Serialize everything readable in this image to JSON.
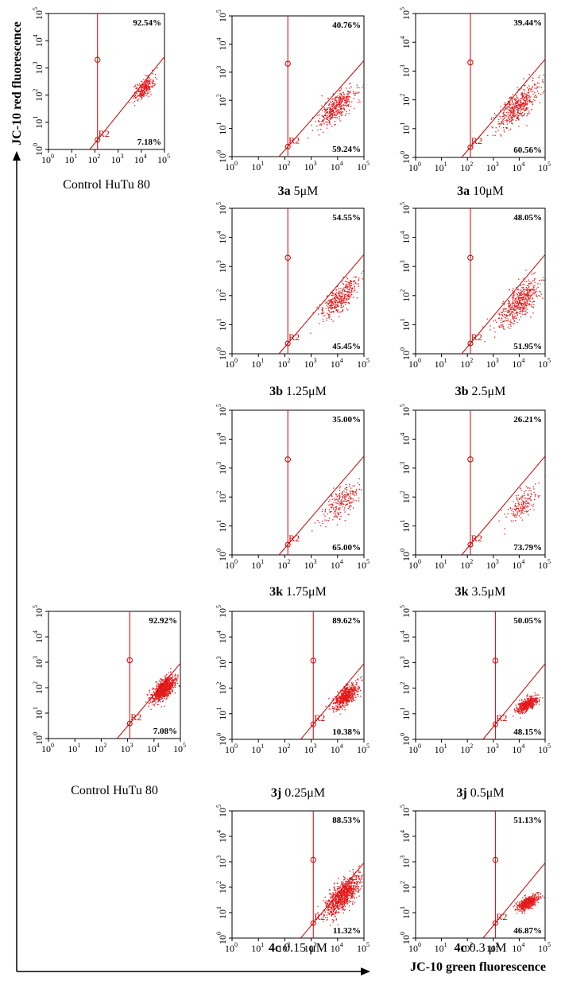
{
  "figure": {
    "y_axis_title": "JC-10 red fluorescence",
    "x_axis_title": "JC-10 green fluorescence",
    "colors": {
      "points": "#e31a1c",
      "gate": "#d00000",
      "axis": "#000000",
      "text": "#000000"
    }
  },
  "chart_data": [
    {
      "type": "scatter",
      "panel": "control-1",
      "caption_bold": "",
      "caption_rest": "Control HuTu 80",
      "x_scale": "log",
      "y_scale": "log",
      "xlim": [
        1,
        100000
      ],
      "ylim": [
        1,
        100000
      ],
      "x_ticks": [
        "10",
        "10",
        "10",
        "10",
        "10",
        "10"
      ],
      "x_tick_exponents": [
        "0",
        "1",
        "2",
        "3",
        "4",
        "5"
      ],
      "y_ticks": [
        "10",
        "10",
        "10",
        "10",
        "10",
        "10"
      ],
      "y_tick_exponents": [
        "0",
        "1",
        "2",
        "3",
        "4",
        "5"
      ],
      "upper_percent": "92.54%",
      "lower_percent": "7.18%",
      "gate_label": "R2",
      "vertical_gate_x": 130,
      "diagonal_gate": [
        [
          60,
          1
        ],
        [
          60000,
          1500
        ]
      ],
      "gate_marker_y": 2000,
      "cluster": {
        "center_x": 12000,
        "center_y": 180,
        "spread_log_x": 0.22,
        "spread_log_y": 0.28,
        "count": 260,
        "tilt": 0.6
      }
    },
    {
      "type": "scatter",
      "panel": "3a-5uM",
      "caption_bold": "3a",
      "caption_rest": " 5μM",
      "x_scale": "log",
      "y_scale": "log",
      "xlim": [
        1,
        100000
      ],
      "ylim": [
        1,
        100000
      ],
      "x_ticks": [
        "10",
        "10",
        "10",
        "10",
        "10",
        "10"
      ],
      "x_tick_exponents": [
        "0",
        "1",
        "2",
        "3",
        "4",
        "5"
      ],
      "y_ticks": [
        "10",
        "10",
        "10",
        "10",
        "10",
        "10"
      ],
      "y_tick_exponents": [
        "0",
        "1",
        "2",
        "3",
        "4",
        "5"
      ],
      "upper_percent": "40.76%",
      "lower_percent": "59.24%",
      "gate_label": "R2",
      "vertical_gate_x": 130,
      "diagonal_gate": [
        [
          60,
          1
        ],
        [
          60000,
          1500
        ]
      ],
      "gate_marker_y": 2000,
      "cluster": {
        "center_x": 9000,
        "center_y": 60,
        "spread_log_x": 0.35,
        "spread_log_y": 0.4,
        "count": 420,
        "tilt": 0.7
      }
    },
    {
      "type": "scatter",
      "panel": "3a-10uM",
      "caption_bold": "3a",
      "caption_rest": " 10μM",
      "x_scale": "log",
      "y_scale": "log",
      "xlim": [
        1,
        100000
      ],
      "ylim": [
        1,
        100000
      ],
      "x_ticks": [
        "10",
        "10",
        "10",
        "10",
        "10",
        "10"
      ],
      "x_tick_exponents": [
        "0",
        "1",
        "2",
        "3",
        "4",
        "5"
      ],
      "y_ticks": [
        "10",
        "10",
        "10",
        "10",
        "10",
        "10"
      ],
      "y_tick_exponents": [
        "0",
        "1",
        "2",
        "3",
        "4",
        "5"
      ],
      "upper_percent": "39.44%",
      "lower_percent": "60.56%",
      "gate_label": "R2",
      "vertical_gate_x": 130,
      "diagonal_gate": [
        [
          60,
          1
        ],
        [
          60000,
          1500
        ]
      ],
      "gate_marker_y": 2000,
      "cluster": {
        "center_x": 8000,
        "center_y": 60,
        "spread_log_x": 0.4,
        "spread_log_y": 0.45,
        "count": 480,
        "tilt": 0.7
      }
    },
    {
      "type": "scatter",
      "panel": "3b-1.25uM",
      "caption_bold": "3b",
      "caption_rest": " 1.25μM",
      "x_scale": "log",
      "y_scale": "log",
      "xlim": [
        1,
        100000
      ],
      "ylim": [
        1,
        100000
      ],
      "x_ticks": [
        "10",
        "10",
        "10",
        "10",
        "10",
        "10"
      ],
      "x_tick_exponents": [
        "0",
        "1",
        "2",
        "3",
        "4",
        "5"
      ],
      "y_ticks": [
        "10",
        "10",
        "10",
        "10",
        "10",
        "10"
      ],
      "y_tick_exponents": [
        "0",
        "1",
        "2",
        "3",
        "4",
        "5"
      ],
      "upper_percent": "54.55%",
      "lower_percent": "45.45%",
      "gate_label": "R2",
      "vertical_gate_x": 130,
      "diagonal_gate": [
        [
          60,
          1
        ],
        [
          60000,
          1500
        ]
      ],
      "gate_marker_y": 2000,
      "cluster": {
        "center_x": 12000,
        "center_y": 90,
        "spread_log_x": 0.35,
        "spread_log_y": 0.4,
        "count": 380,
        "tilt": 0.7
      }
    },
    {
      "type": "scatter",
      "panel": "3b-2.5uM",
      "caption_bold": "3b",
      "caption_rest": " 2.5μM",
      "x_scale": "log",
      "y_scale": "log",
      "xlim": [
        1,
        100000
      ],
      "ylim": [
        1,
        100000
      ],
      "x_ticks": [
        "10",
        "10",
        "10",
        "10",
        "10",
        "10"
      ],
      "x_tick_exponents": [
        "0",
        "1",
        "2",
        "3",
        "4",
        "5"
      ],
      "y_ticks": [
        "10",
        "10",
        "10",
        "10",
        "10",
        "10"
      ],
      "y_tick_exponents": [
        "0",
        "1",
        "2",
        "3",
        "4",
        "5"
      ],
      "upper_percent": "48.05%",
      "lower_percent": "51.95%",
      "gate_label": "R2",
      "vertical_gate_x": 130,
      "diagonal_gate": [
        [
          60,
          1
        ],
        [
          60000,
          1500
        ]
      ],
      "gate_marker_y": 2000,
      "cluster": {
        "center_x": 10000,
        "center_y": 60,
        "spread_log_x": 0.42,
        "spread_log_y": 0.48,
        "count": 520,
        "tilt": 0.7
      }
    },
    {
      "type": "scatter",
      "panel": "3k-1.75uM",
      "caption_bold": "3k",
      "caption_rest": " 1.75μM",
      "x_scale": "log",
      "y_scale": "log",
      "xlim": [
        1,
        100000
      ],
      "ylim": [
        1,
        100000
      ],
      "x_ticks": [
        "10",
        "10",
        "10",
        "10",
        "10",
        "10"
      ],
      "x_tick_exponents": [
        "0",
        "1",
        "2",
        "3",
        "4",
        "5"
      ],
      "y_ticks": [
        "10",
        "10",
        "10",
        "10",
        "10",
        "10"
      ],
      "y_tick_exponents": [
        "0",
        "1",
        "2",
        "3",
        "4",
        "5"
      ],
      "upper_percent": "35.00%",
      "lower_percent": "65.00%",
      "gate_label": "R2",
      "vertical_gate_x": 130,
      "diagonal_gate": [
        [
          60,
          1
        ],
        [
          60000,
          1500
        ]
      ],
      "gate_marker_y": 2000,
      "cluster": {
        "center_x": 14000,
        "center_y": 70,
        "spread_log_x": 0.35,
        "spread_log_y": 0.42,
        "count": 230,
        "tilt": 0.6
      }
    },
    {
      "type": "scatter",
      "panel": "3k-3.5uM",
      "caption_bold": "3k",
      "caption_rest": " 3.5μM",
      "x_scale": "log",
      "y_scale": "log",
      "xlim": [
        1,
        100000
      ],
      "ylim": [
        1,
        100000
      ],
      "x_ticks": [
        "10",
        "10",
        "10",
        "10",
        "10",
        "10"
      ],
      "x_tick_exponents": [
        "0",
        "1",
        "2",
        "3",
        "4",
        "5"
      ],
      "y_ticks": [
        "10",
        "10",
        "10",
        "10",
        "10",
        "10"
      ],
      "y_tick_exponents": [
        "0",
        "1",
        "2",
        "3",
        "4",
        "5"
      ],
      "upper_percent": "26.21%",
      "lower_percent": "73.79%",
      "gate_label": "R2",
      "vertical_gate_x": 130,
      "diagonal_gate": [
        [
          60,
          1
        ],
        [
          60000,
          1500
        ]
      ],
      "gate_marker_y": 2000,
      "cluster": {
        "center_x": 14000,
        "center_y": 60,
        "spread_log_x": 0.3,
        "spread_log_y": 0.38,
        "count": 170,
        "tilt": 0.6
      }
    },
    {
      "type": "scatter",
      "panel": "control-2",
      "caption_bold": "",
      "caption_rest": "Control HuTu 80",
      "x_scale": "log",
      "y_scale": "log",
      "xlim": [
        1,
        100000
      ],
      "ylim": [
        1,
        100000
      ],
      "x_ticks": [
        "10",
        "10",
        "10",
        "10",
        "10",
        "10"
      ],
      "x_tick_exponents": [
        "0",
        "1",
        "2",
        "3",
        "4",
        "5"
      ],
      "y_ticks": [
        "10",
        "10",
        "10",
        "10",
        "10",
        "10"
      ],
      "y_tick_exponents": [
        "0",
        "1",
        "2",
        "3",
        "4",
        "5"
      ],
      "upper_percent": "92.92%",
      "lower_percent": "7.08%",
      "gate_label": "R2",
      "vertical_gate_x": 1200,
      "diagonal_gate": [
        [
          400,
          1
        ],
        [
          90000,
          800
        ]
      ],
      "gate_marker_y": 1200,
      "cluster": {
        "center_x": 22000,
        "center_y": 90,
        "spread_log_x": 0.22,
        "spread_log_y": 0.3,
        "count": 900,
        "tilt": 0.7
      }
    },
    {
      "type": "scatter",
      "panel": "3j-0.25uM",
      "caption_bold": "3j",
      "caption_rest": " 0.25μM",
      "x_scale": "log",
      "y_scale": "log",
      "xlim": [
        1,
        100000
      ],
      "ylim": [
        1,
        100000
      ],
      "x_ticks": [
        "10",
        "10",
        "10",
        "10",
        "10",
        "10"
      ],
      "x_tick_exponents": [
        "0",
        "1",
        "2",
        "3",
        "4",
        "5"
      ],
      "y_ticks": [
        "10",
        "10",
        "10",
        "10",
        "10",
        "10"
      ],
      "y_tick_exponents": [
        "0",
        "1",
        "2",
        "3",
        "4",
        "5"
      ],
      "upper_percent": "89.62%",
      "lower_percent": "10.38%",
      "gate_label": "R2",
      "vertical_gate_x": 1200,
      "diagonal_gate": [
        [
          400,
          1
        ],
        [
          90000,
          800
        ]
      ],
      "gate_marker_y": 1200,
      "cluster": {
        "center_x": 20000,
        "center_y": 50,
        "spread_log_x": 0.22,
        "spread_log_y": 0.3,
        "count": 600,
        "tilt": 0.7
      }
    },
    {
      "type": "scatter",
      "panel": "3j-0.5uM",
      "caption_bold": "3j",
      "caption_rest": " 0.5μM",
      "x_scale": "log",
      "y_scale": "log",
      "xlim": [
        1,
        100000
      ],
      "ylim": [
        1,
        100000
      ],
      "x_ticks": [
        "10",
        "10",
        "10",
        "10",
        "10",
        "10"
      ],
      "x_tick_exponents": [
        "0",
        "1",
        "2",
        "3",
        "4",
        "5"
      ],
      "y_ticks": [
        "10",
        "10",
        "10",
        "10",
        "10",
        "10"
      ],
      "y_tick_exponents": [
        "0",
        "1",
        "2",
        "3",
        "4",
        "5"
      ],
      "upper_percent": "50.05%",
      "lower_percent": "48.15%",
      "gate_label": "R2",
      "vertical_gate_x": 1200,
      "diagonal_gate": [
        [
          400,
          1
        ],
        [
          90000,
          800
        ]
      ],
      "gate_marker_y": 1200,
      "cluster": {
        "center_x": 20000,
        "center_y": 25,
        "spread_log_x": 0.2,
        "spread_log_y": 0.2,
        "count": 520,
        "tilt": 0.5
      }
    },
    {
      "type": "scatter",
      "panel": "4c-0.15uM",
      "caption_bold": "4c",
      "caption_rest": " 0.15 μM",
      "x_scale": "log",
      "y_scale": "log",
      "xlim": [
        1,
        100000
      ],
      "ylim": [
        1,
        100000
      ],
      "x_ticks": [
        "10",
        "10",
        "10",
        "10",
        "10",
        "10"
      ],
      "x_tick_exponents": [
        "0",
        "1",
        "2",
        "3",
        "4",
        "5"
      ],
      "y_ticks": [
        "10",
        "10",
        "10",
        "10",
        "10",
        "10"
      ],
      "y_tick_exponents": [
        "0",
        "1",
        "2",
        "3",
        "4",
        "5"
      ],
      "upper_percent": "88.53%",
      "lower_percent": "11.32%",
      "gate_label": "R2",
      "vertical_gate_x": 1200,
      "diagonal_gate": [
        [
          400,
          1
        ],
        [
          90000,
          800
        ]
      ],
      "gate_marker_y": 1200,
      "cluster": {
        "center_x": 15000,
        "center_y": 50,
        "spread_log_x": 0.32,
        "spread_log_y": 0.45,
        "count": 900,
        "tilt": 0.85
      }
    },
    {
      "type": "scatter",
      "panel": "4c-0.3uM",
      "caption_bold": "4c",
      "caption_rest": " 0.3 μM",
      "x_scale": "log",
      "y_scale": "log",
      "xlim": [
        1,
        100000
      ],
      "ylim": [
        1,
        100000
      ],
      "x_ticks": [
        "10",
        "10",
        "10",
        "10",
        "10",
        "10"
      ],
      "x_tick_exponents": [
        "0",
        "1",
        "2",
        "3",
        "4",
        "5"
      ],
      "y_ticks": [
        "10",
        "10",
        "10",
        "10",
        "10",
        "10"
      ],
      "y_tick_exponents": [
        "0",
        "1",
        "2",
        "3",
        "4",
        "5"
      ],
      "upper_percent": "51.13%",
      "lower_percent": "46.87%",
      "gate_label": "R2",
      "vertical_gate_x": 1200,
      "diagonal_gate": [
        [
          400,
          1
        ],
        [
          90000,
          800
        ]
      ],
      "gate_marker_y": 1200,
      "cluster": {
        "center_x": 20000,
        "center_y": 25,
        "spread_log_x": 0.2,
        "spread_log_y": 0.2,
        "count": 520,
        "tilt": 0.5
      }
    }
  ]
}
